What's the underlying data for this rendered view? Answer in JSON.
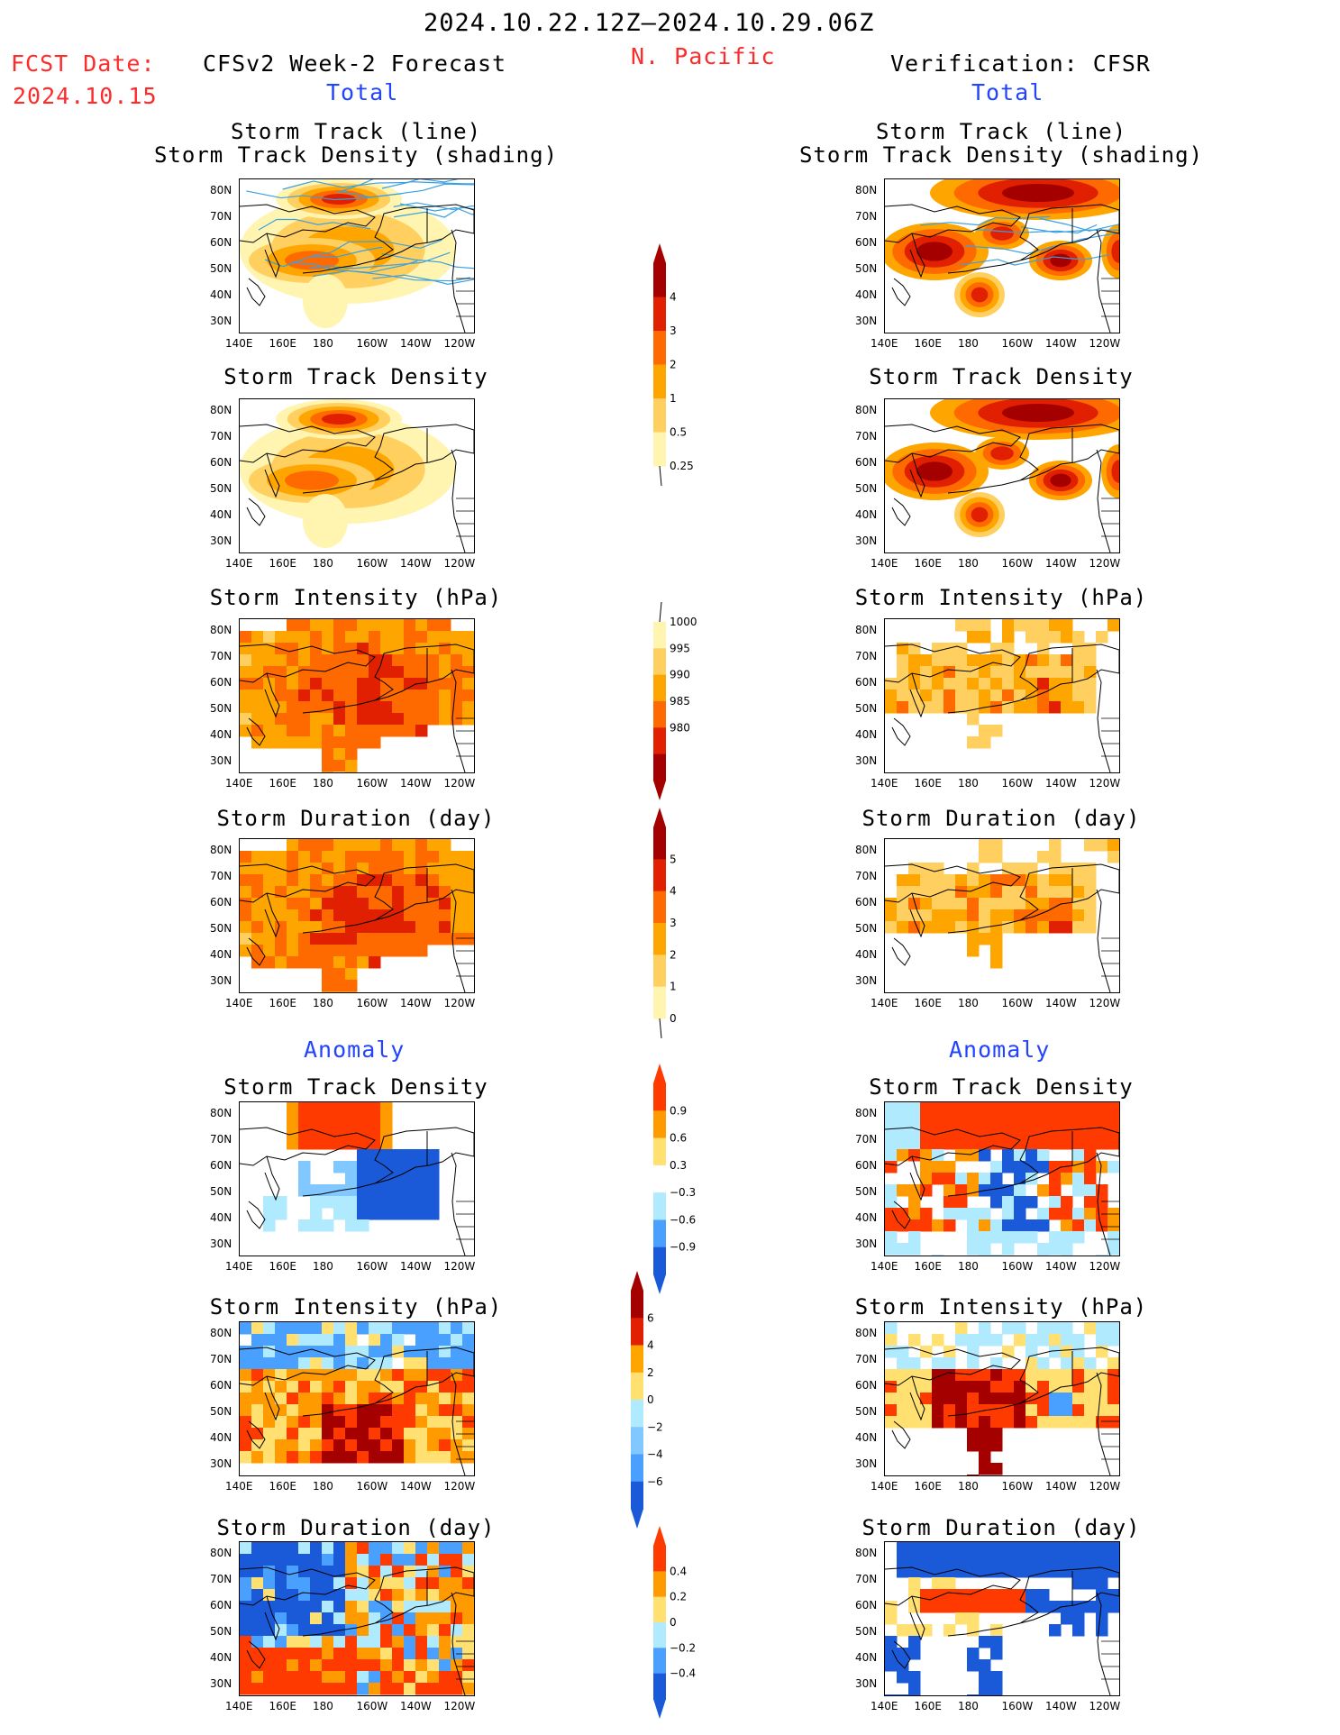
{
  "header": {
    "date_range": "2024.10.22.12Z—2024.10.29.06Z",
    "fcst_label": "FCST Date:",
    "fcst_date": "2024.10.15",
    "left_title": "CFSv2 Week-2 Forecast",
    "region": "N. Pacific",
    "right_title": "Verification: CFSR",
    "total_left": "Total",
    "total_right": "Total",
    "anomaly_left": "Anomaly",
    "anomaly_right": "Anomaly"
  },
  "panel_titles": {
    "track_line": "Storm Track (line)",
    "track_shading": "Storm Track Density (shading)",
    "density": "Storm Track Density",
    "intensity": "Storm Intensity (hPa)",
    "duration": "Storm Duration (day)"
  },
  "axes": {
    "y_ticks": [
      "80N",
      "70N",
      "60N",
      "50N",
      "40N",
      "30N"
    ],
    "x_ticks": [
      "140E",
      "160E",
      "180",
      "160W",
      "140W",
      "120W"
    ]
  },
  "colorbars": {
    "density_total": {
      "labels": [
        "4",
        "3",
        "2",
        "1",
        "0.5",
        "0.25"
      ],
      "colors": [
        "#a50000",
        "#e02000",
        "#ff6a00",
        "#ffa500",
        "#ffd060",
        "#fff5b0"
      ]
    },
    "intensity_total": {
      "labels": [
        "1000",
        "995",
        "990",
        "985",
        "980"
      ],
      "colors": [
        "#fff5b0",
        "#ffd060",
        "#ffa500",
        "#ff6a00",
        "#e02000",
        "#a50000"
      ]
    },
    "duration_total": {
      "labels": [
        "5",
        "4",
        "3",
        "2",
        "1",
        "0"
      ],
      "colors": [
        "#a50000",
        "#e02000",
        "#ff6a00",
        "#ffa500",
        "#ffd060",
        "#fff5b0"
      ]
    },
    "density_anom": {
      "labels": [
        "0.9",
        "0.6",
        "0.3",
        "−0.3",
        "−0.6",
        "−0.9"
      ],
      "colors": [
        "#ff3a00",
        "#ff9a00",
        "#ffe070",
        "#ffffff",
        "#b0eaff",
        "#4aa0ff",
        "#1a5ad8"
      ]
    },
    "intensity_anom": {
      "labels": [
        "6",
        "4",
        "2",
        "0",
        "−2",
        "−4",
        "−6"
      ],
      "colors": [
        "#a50000",
        "#e02000",
        "#ffa500",
        "#ffe070",
        "#b0eaff",
        "#80c8ff",
        "#4aa0ff",
        "#1a5ad8"
      ]
    },
    "duration_anom": {
      "labels": [
        "0.4",
        "0.2",
        "0",
        "−0.2",
        "−0.4"
      ],
      "colors": [
        "#ff3a00",
        "#ff9a00",
        "#ffe070",
        "#b0eaff",
        "#4aa0ff",
        "#1a5ad8"
      ]
    }
  }
}
